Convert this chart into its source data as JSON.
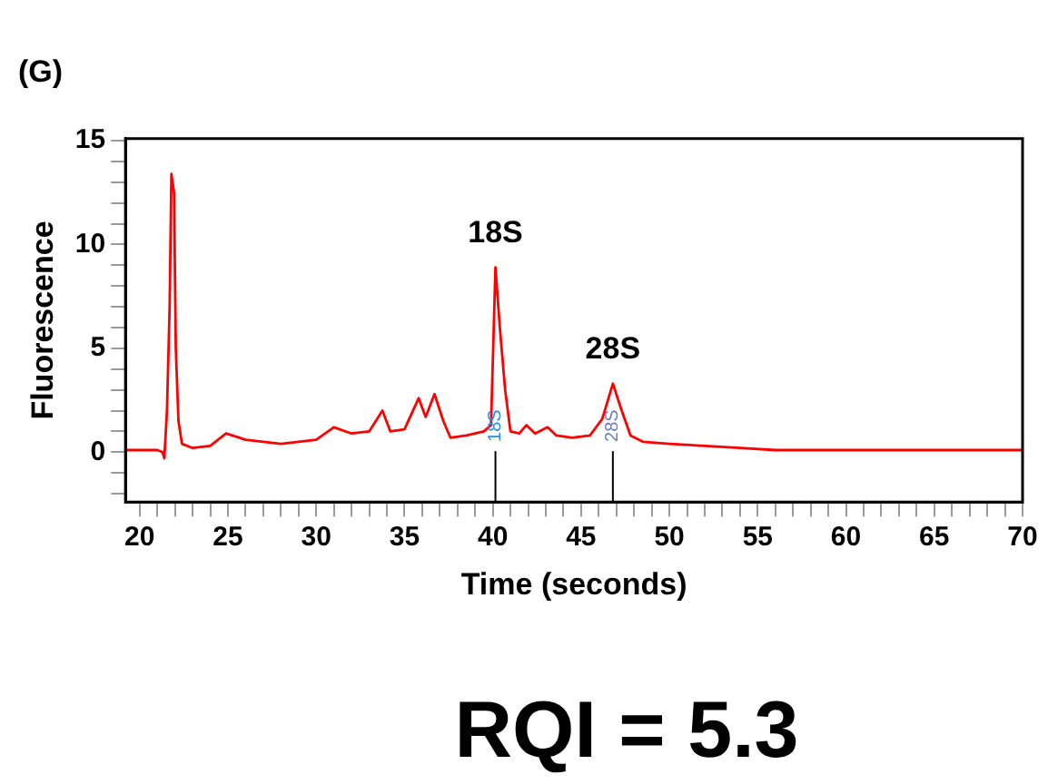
{
  "chart_data": {
    "type": "line",
    "title": "(G)",
    "xlabel": "Time (seconds)",
    "ylabel": "Fluorescence",
    "x": [
      19.2,
      20,
      21,
      21.3,
      21.4,
      21.55,
      21.7,
      21.8,
      21.95,
      22.05,
      22.2,
      22.4,
      23,
      24,
      24.9,
      26,
      27,
      28,
      29,
      30,
      31,
      32,
      33,
      33.75,
      34.2,
      35,
      35.8,
      36.2,
      36.7,
      37.2,
      37.6,
      38.5,
      39.5,
      39.9,
      40.15,
      40.4,
      40.7,
      41,
      41.5,
      41.9,
      42.4,
      43.1,
      43.6,
      44.5,
      45.5,
      46.2,
      46.8,
      47.3,
      47.8,
      48.5,
      50,
      52,
      54,
      56,
      58,
      60,
      62,
      64,
      66,
      68,
      70
    ],
    "series": [
      {
        "color": "#ff0000",
        "values": [
          0.1,
          0.1,
          0.1,
          0.0,
          -0.3,
          2.0,
          7.0,
          13.4,
          12.5,
          5.0,
          1.5,
          0.4,
          0.2,
          0.3,
          0.9,
          0.6,
          0.5,
          0.4,
          0.5,
          0.6,
          1.2,
          0.9,
          1.0,
          2.0,
          1.0,
          1.1,
          2.6,
          1.7,
          2.8,
          1.5,
          0.7,
          0.8,
          1.0,
          1.3,
          8.9,
          6.0,
          3.0,
          1.0,
          0.9,
          1.3,
          0.9,
          1.2,
          0.8,
          0.7,
          0.8,
          1.6,
          3.3,
          2.0,
          0.8,
          0.5,
          0.4,
          0.3,
          0.2,
          0.1,
          0.1,
          0.1,
          0.1,
          0.1,
          0.1,
          0.1,
          0.1
        ]
      }
    ],
    "xlim": [
      19.2,
      70
    ],
    "xticks": [
      20,
      {
        "value": 21,
        "label": null
      },
      {
        "value": 22,
        "label": null
      },
      {
        "value": 23,
        "label": null
      },
      {
        "value": 24,
        "label": null
      },
      25,
      {
        "value": 26,
        "label": null
      },
      {
        "value": 27,
        "label": null
      },
      {
        "value": 28,
        "label": null
      },
      {
        "value": 29,
        "label": null
      },
      30,
      {
        "value": 31,
        "label": null
      },
      {
        "value": 32,
        "label": null
      },
      {
        "value": 33,
        "label": null
      },
      {
        "value": 34,
        "label": null
      },
      35,
      {
        "value": 36,
        "label": null
      },
      {
        "value": 37,
        "label": null
      },
      {
        "value": 38,
        "label": null
      },
      {
        "value": 39,
        "label": null
      },
      40,
      {
        "value": 41,
        "label": null
      },
      {
        "value": 42,
        "label": null
      },
      {
        "value": 43,
        "label": null
      },
      {
        "value": 44,
        "label": null
      },
      45,
      {
        "value": 46,
        "label": null
      },
      {
        "value": 47,
        "label": null
      },
      {
        "value": 48,
        "label": null
      },
      {
        "value": 49,
        "label": null
      },
      50,
      {
        "value": 51,
        "label": null
      },
      {
        "value": 52,
        "label": null
      },
      {
        "value": 53,
        "label": null
      },
      {
        "value": 54,
        "label": null
      },
      55,
      {
        "value": 56,
        "label": null
      },
      {
        "value": 57,
        "label": null
      },
      {
        "value": 58,
        "label": null
      },
      {
        "value": 59,
        "label": null
      },
      60,
      {
        "value": 61,
        "label": null
      },
      {
        "value": 62,
        "label": null
      },
      {
        "value": 63,
        "label": null
      },
      {
        "value": 64,
        "label": null
      },
      65,
      {
        "value": 66,
        "label": null
      },
      {
        "value": 67,
        "label": null
      },
      {
        "value": 68,
        "label": null
      },
      {
        "value": 69,
        "label": null
      },
      70
    ],
    "ylim": [
      -2.4,
      15.1
    ],
    "yticks": [
      {
        "value": -2,
        "label": null
      },
      {
        "value": -1,
        "label": null
      },
      0,
      {
        "value": 1,
        "label": null
      },
      {
        "value": 2,
        "label": null
      },
      {
        "value": 3,
        "label": null
      },
      {
        "value": 4,
        "label": null
      },
      5,
      {
        "value": 6,
        "label": null
      },
      {
        "value": 7,
        "label": null
      },
      {
        "value": 8,
        "label": null
      },
      {
        "value": 9,
        "label": null
      },
      10,
      {
        "value": 11,
        "label": null
      },
      {
        "value": 12,
        "label": null
      },
      {
        "value": 13,
        "label": null
      },
      {
        "value": 14,
        "label": null
      },
      15
    ],
    "grid": false,
    "legend": false,
    "marker": "none",
    "line_style": "solid",
    "annotations": [
      {
        "text": "18S",
        "x": 40.15,
        "y": 8.9
      },
      {
        "text": "28S",
        "x": 46.8,
        "y": 3.3
      },
      "18S",
      "28S",
      "RQI = 5.3"
    ]
  }
}
